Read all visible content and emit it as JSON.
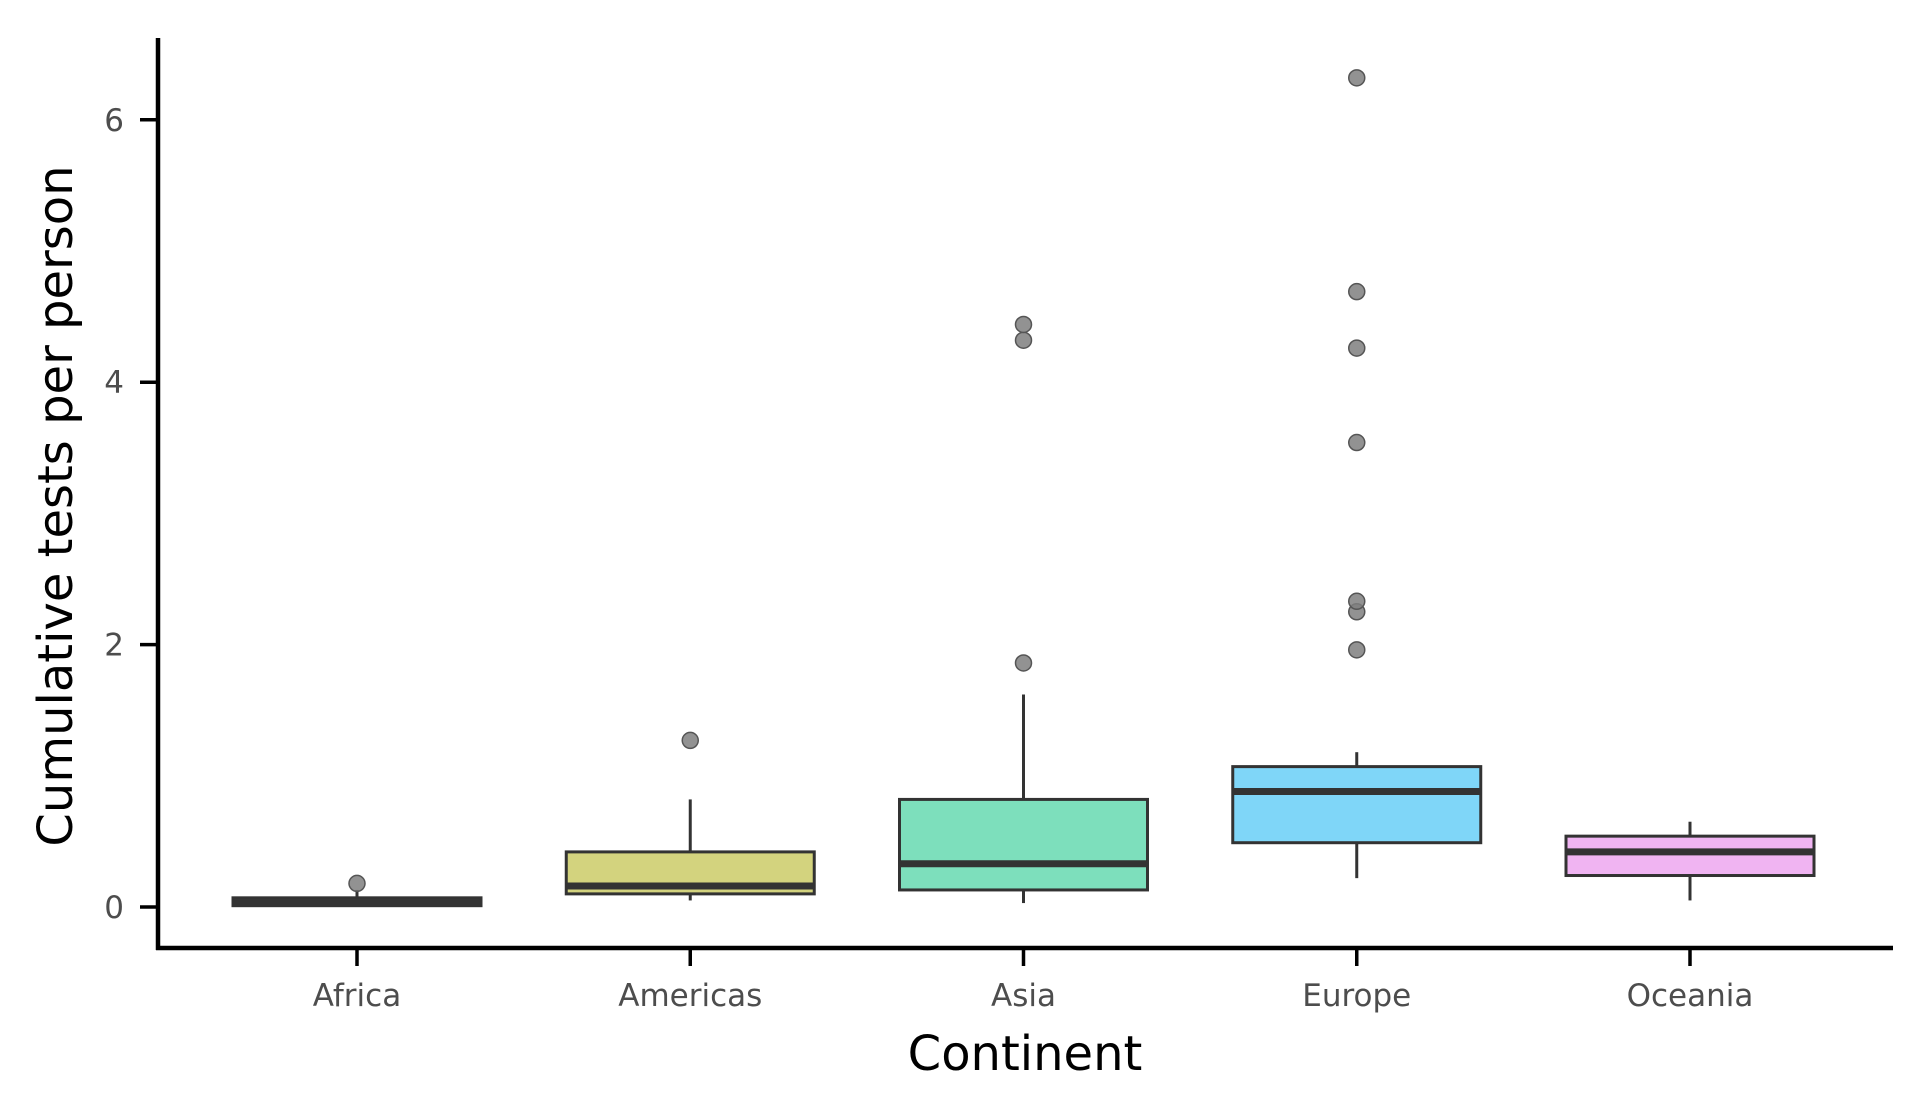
{
  "chart_data": {
    "type": "box",
    "xlabel": "Continent",
    "ylabel": "Cumulative tests per person",
    "ylim": [
      -0.3,
      6.6
    ],
    "yticks": [
      0,
      2,
      4,
      6
    ],
    "grid": false,
    "legend": "none",
    "categories": [
      "Africa",
      "Americas",
      "Asia",
      "Europe",
      "Oceania"
    ],
    "boxes": [
      {
        "category": "Africa",
        "whisker_low": 0.0,
        "q1": 0.01,
        "median": 0.03,
        "q3": 0.07,
        "whisker_high": 0.13,
        "outliers": [
          0.18
        ],
        "color": "#3d3d3d"
      },
      {
        "category": "Americas",
        "whisker_low": 0.05,
        "q1": 0.1,
        "median": 0.16,
        "q3": 0.42,
        "whisker_high": 0.82,
        "outliers": [
          1.27
        ],
        "color": "#d3d37e"
      },
      {
        "category": "Asia",
        "whisker_low": 0.03,
        "q1": 0.13,
        "median": 0.33,
        "q3": 0.82,
        "whisker_high": 1.62,
        "outliers": [
          1.86,
          4.32,
          4.44
        ],
        "color": "#7ddfbc"
      },
      {
        "category": "Europe",
        "whisker_low": 0.22,
        "q1": 0.49,
        "median": 0.88,
        "q3": 1.07,
        "whisker_high": 1.18,
        "outliers": [
          1.96,
          2.25,
          2.33,
          3.54,
          4.26,
          4.69,
          6.32
        ],
        "color": "#7fd6f8"
      },
      {
        "category": "Oceania",
        "whisker_low": 0.05,
        "q1": 0.24,
        "median": 0.42,
        "q3": 0.54,
        "whisker_high": 0.65,
        "outliers": [],
        "color": "#f0b4f2"
      }
    ]
  }
}
